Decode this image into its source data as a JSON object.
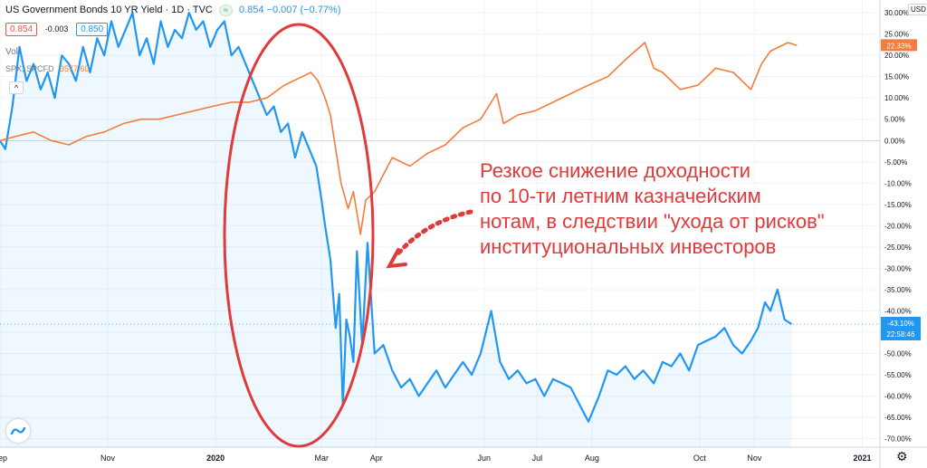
{
  "header": {
    "symbol": "US Government Bonds 10 YR Yield · 1D · TVC",
    "status_pill": "≈",
    "last": "0.854",
    "change": "−0.007 (−0.77%)"
  },
  "ohlc": {
    "bid": "0.854",
    "spread": "-0.003",
    "ask": "0.850"
  },
  "vol_label": "Vol",
  "compare": {
    "label": "SPX, SPCFD",
    "value": "3577.60"
  },
  "collapse_label": "^",
  "currency_badge": "USD",
  "annotation": "Резкое снижение доходности\nпо 10-ти летним казначейским\nнотам, в следствии \"ухода от рисков\"\nинституциональных инвесторов",
  "colors": {
    "bond": "#2196f3",
    "spx": "#f57c3a",
    "annotation": "#e03a3a",
    "grid": "#f0f3fa"
  },
  "icons": {
    "logo": "tradingview-logo-icon",
    "settings": "gear-icon"
  },
  "chart_data": {
    "type": "line",
    "y_axis": {
      "unit": "%",
      "ticks": [
        "30.00%",
        "25.00%",
        "20.00%",
        "15.00%",
        "10.00%",
        "5.00%",
        "0.00%",
        "-5.00%",
        "-10.00%",
        "-15.00%",
        "-20.00%",
        "-25.00%",
        "-30.00%",
        "-35.00%",
        "-40.00%",
        "-45.00%",
        "-50.00%",
        "-55.00%",
        "-60.00%",
        "-65.00%",
        "-70.00%"
      ],
      "tick_values": [
        30,
        25,
        20,
        15,
        10,
        5,
        0,
        -5,
        -10,
        -15,
        -20,
        -25,
        -30,
        -35,
        -40,
        -45,
        -50,
        -55,
        -60,
        -65,
        -70
      ],
      "range": [
        -72,
        33
      ]
    },
    "x_axis": {
      "labels": [
        "Sep",
        "Nov",
        "2020",
        "Mar",
        "Apr",
        "Jun",
        "Jul",
        "Aug",
        "Oct",
        "Nov",
        "2021"
      ],
      "label_dates": [
        "2019-09-01",
        "2019-11-01",
        "2020-01-01",
        "2020-03-01",
        "2020-04-01",
        "2020-06-01",
        "2020-07-01",
        "2020-08-01",
        "2020-10-01",
        "2020-11-01",
        "2021-01-01"
      ],
      "range": [
        "2019-09-01",
        "2021-01-11"
      ]
    },
    "series": [
      {
        "name": "US Government Bonds 10 YR Yield",
        "color": "#2196f3",
        "last_label": "-43.10%",
        "countdown": "22:58:46",
        "x": [
          "2019-09-01",
          "2019-09-04",
          "2019-09-08",
          "2019-09-12",
          "2019-09-16",
          "2019-09-20",
          "2019-09-24",
          "2019-09-28",
          "2019-10-02",
          "2019-10-06",
          "2019-10-10",
          "2019-10-14",
          "2019-10-18",
          "2019-10-22",
          "2019-10-26",
          "2019-10-30",
          "2019-11-03",
          "2019-11-07",
          "2019-11-11",
          "2019-11-15",
          "2019-11-19",
          "2019-11-23",
          "2019-11-27",
          "2019-12-01",
          "2019-12-05",
          "2019-12-09",
          "2019-12-13",
          "2019-12-17",
          "2019-12-21",
          "2019-12-25",
          "2019-12-29",
          "2020-01-02",
          "2020-01-06",
          "2020-01-10",
          "2020-01-14",
          "2020-01-18",
          "2020-01-22",
          "2020-01-26",
          "2020-01-30",
          "2020-02-03",
          "2020-02-07",
          "2020-02-11",
          "2020-02-15",
          "2020-02-19",
          "2020-02-23",
          "2020-02-27",
          "2020-03-01",
          "2020-03-03",
          "2020-03-06",
          "2020-03-09",
          "2020-03-11",
          "2020-03-13",
          "2020-03-15",
          "2020-03-17",
          "2020-03-19",
          "2020-03-21",
          "2020-03-24",
          "2020-03-27",
          "2020-03-31",
          "2020-04-05",
          "2020-04-10",
          "2020-04-15",
          "2020-04-20",
          "2020-04-25",
          "2020-04-30",
          "2020-05-05",
          "2020-05-10",
          "2020-05-15",
          "2020-05-20",
          "2020-05-25",
          "2020-05-30",
          "2020-06-05",
          "2020-06-10",
          "2020-06-15",
          "2020-06-20",
          "2020-06-25",
          "2020-06-30",
          "2020-07-05",
          "2020-07-10",
          "2020-07-15",
          "2020-07-20",
          "2020-07-25",
          "2020-07-30",
          "2020-08-05",
          "2020-08-10",
          "2020-08-15",
          "2020-08-20",
          "2020-08-25",
          "2020-08-30",
          "2020-09-05",
          "2020-09-10",
          "2020-09-15",
          "2020-09-20",
          "2020-09-25",
          "2020-09-30",
          "2020-10-05",
          "2020-10-10",
          "2020-10-15",
          "2020-10-20",
          "2020-10-25",
          "2020-10-30",
          "2020-11-03",
          "2020-11-07",
          "2020-11-10",
          "2020-11-14",
          "2020-11-18",
          "2020-11-22"
        ],
        "values": [
          0,
          -2,
          8,
          22,
          14,
          18,
          12,
          16,
          10,
          20,
          18,
          14,
          22,
          16,
          24,
          20,
          28,
          22,
          26,
          30,
          20,
          24,
          18,
          28,
          22,
          26,
          24,
          30,
          26,
          28,
          22,
          26,
          28,
          20,
          22,
          18,
          14,
          10,
          6,
          8,
          2,
          4,
          -4,
          2,
          -2,
          -6,
          -14,
          -20,
          -28,
          -44,
          -36,
          -62,
          -42,
          -46,
          -52,
          -26,
          -48,
          -24,
          -50,
          -48,
          -54,
          -58,
          -56,
          -60,
          -57,
          -54,
          -58,
          -55,
          -52,
          -55,
          -50,
          -40,
          -52,
          -56,
          -54,
          -57,
          -56,
          -60,
          -56,
          -57,
          -58,
          -62,
          -66,
          -60,
          -54,
          -55,
          -53,
          -56,
          -54,
          -57,
          -52,
          -53,
          -50,
          -54,
          -48,
          -47,
          -46,
          -44,
          -48,
          -50,
          -47,
          -44,
          -38,
          -40,
          -35,
          -42,
          -43.1
        ]
      },
      {
        "name": "SPX, SPCFD",
        "color": "#f57c3a",
        "last_label": "22.33%",
        "x": [
          "2019-09-01",
          "2019-09-10",
          "2019-09-20",
          "2019-09-30",
          "2019-10-10",
          "2019-10-20",
          "2019-10-30",
          "2019-11-10",
          "2019-11-20",
          "2019-11-30",
          "2019-12-10",
          "2019-12-20",
          "2019-12-30",
          "2020-01-10",
          "2020-01-20",
          "2020-01-30",
          "2020-02-09",
          "2020-02-19",
          "2020-02-24",
          "2020-02-28",
          "2020-03-03",
          "2020-03-06",
          "2020-03-09",
          "2020-03-12",
          "2020-03-16",
          "2020-03-19",
          "2020-03-23",
          "2020-03-26",
          "2020-03-31",
          "2020-04-05",
          "2020-04-10",
          "2020-04-20",
          "2020-04-30",
          "2020-05-10",
          "2020-05-20",
          "2020-05-30",
          "2020-06-08",
          "2020-06-12",
          "2020-06-20",
          "2020-06-30",
          "2020-07-10",
          "2020-07-20",
          "2020-07-30",
          "2020-08-10",
          "2020-08-20",
          "2020-08-31",
          "2020-09-05",
          "2020-09-10",
          "2020-09-20",
          "2020-09-30",
          "2020-10-10",
          "2020-10-20",
          "2020-10-30",
          "2020-11-05",
          "2020-11-10",
          "2020-11-20",
          "2020-11-25"
        ],
        "values": [
          0,
          1,
          2,
          0,
          -1,
          1,
          2,
          4,
          5,
          5,
          6,
          7,
          8,
          9,
          9,
          10,
          13,
          15,
          16,
          14,
          10,
          6,
          -2,
          -10,
          -16,
          -12,
          -22,
          -14,
          -12,
          -8,
          -4,
          -6,
          -3,
          -1,
          3,
          5,
          11,
          4,
          6,
          7,
          9,
          11,
          13,
          15,
          19,
          23,
          17,
          16,
          12,
          13,
          17,
          16,
          12,
          18,
          21,
          23,
          22.3
        ]
      }
    ]
  }
}
